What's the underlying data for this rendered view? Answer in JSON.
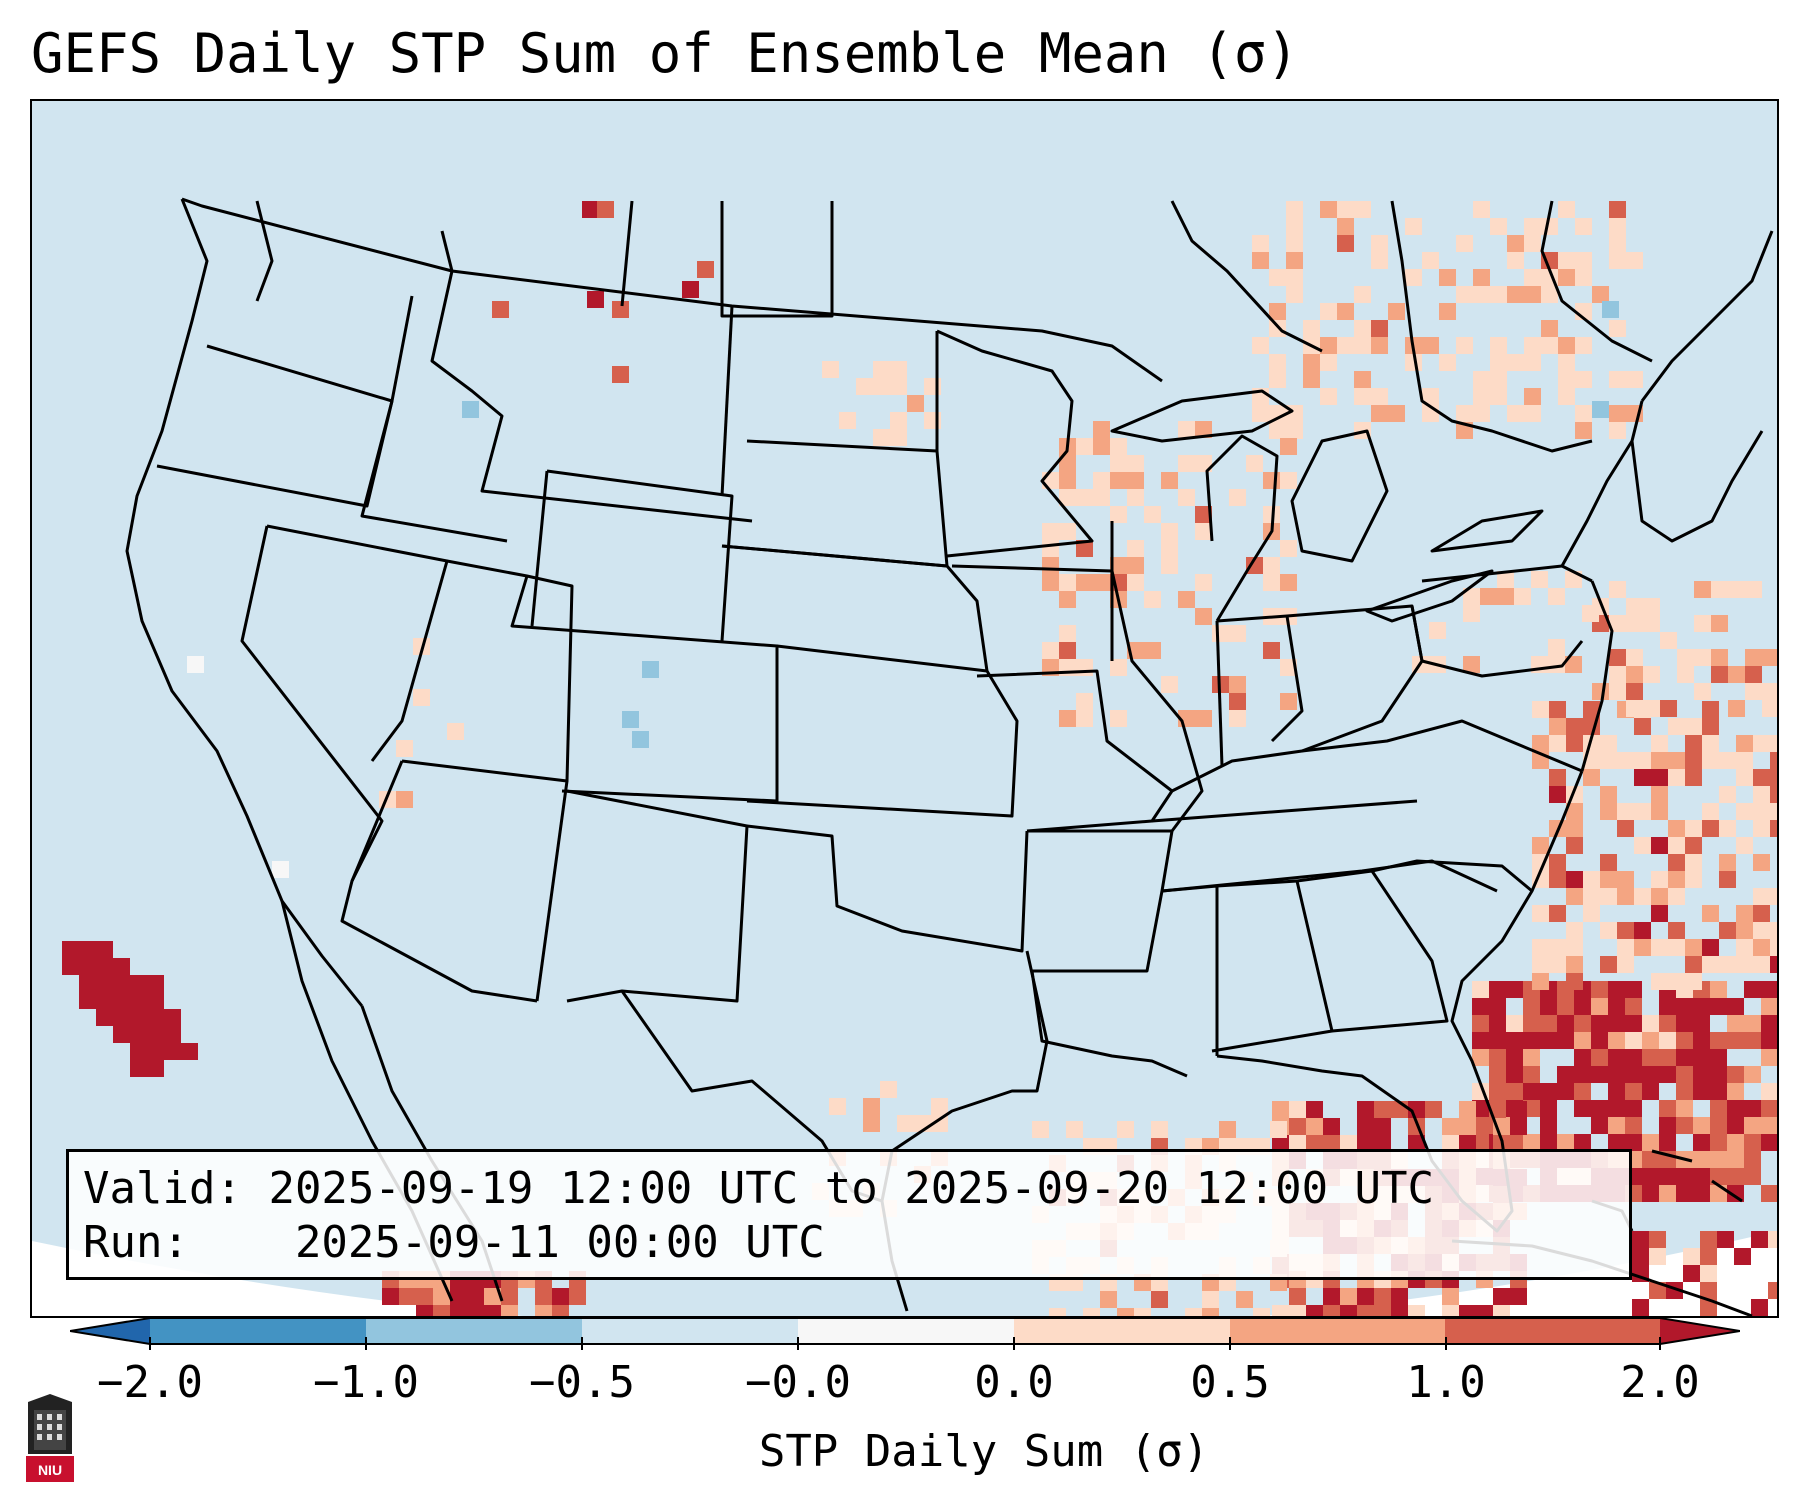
{
  "title": "GEFS Daily STP Sum of Ensemble Mean (σ)",
  "info": {
    "valid_label": "Valid:",
    "valid_value": "2025-09-19 12:00 UTC to 2025-09-20 12:00 UTC",
    "run_label": "Run:",
    "run_value": "2025-09-11 00:00 UTC"
  },
  "colorbar": {
    "label": "STP Daily Sum (σ)",
    "ticks": [
      "−2.0",
      "−1.0",
      "−0.5",
      "−0.0",
      "0.0",
      "0.5",
      "1.0",
      "2.0"
    ],
    "colors": {
      "below_min": "#2166ac",
      "neg_2_to_1": "#4393c3",
      "neg_1_to_05": "#92c5de",
      "neg_05_to_0": "#d1e5f0",
      "zero": "#f7f7f7",
      "pos_0_to_05": "#fddbc7",
      "pos_05_to_1": "#f4a582",
      "pos_1_to_2": "#d6604d",
      "above_max": "#b2182b"
    }
  },
  "map": {
    "background_color": "#d1e5f0",
    "border_color": "#000000",
    "region": "Contiguous United States, southern Canada, northern Mexico, Gulf of Mexico, Caribbean"
  },
  "logo": {
    "text": "NIU",
    "icon": "niu-building-logo-icon"
  }
}
